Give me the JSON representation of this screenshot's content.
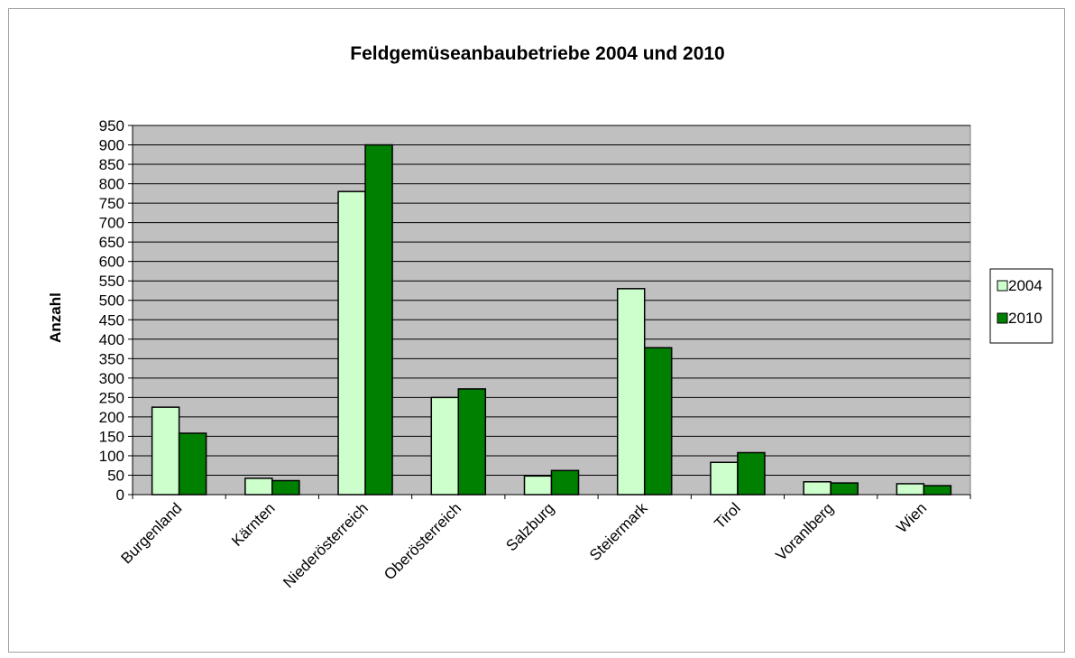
{
  "chart_data": {
    "type": "bar",
    "title": "Feldgemüseanbaubetriebe 2004 und 2010",
    "xlabel": "",
    "ylabel": "Anzahl",
    "ylim": [
      0,
      950
    ],
    "yticks": [
      0,
      50,
      100,
      150,
      200,
      250,
      300,
      350,
      400,
      450,
      500,
      550,
      600,
      650,
      700,
      750,
      800,
      850,
      900,
      950
    ],
    "grid": true,
    "legend_position": "right",
    "categories": [
      "Burgenland",
      "Kärnten",
      "Niederösterreich",
      "Oberösterreich",
      "Salzburg",
      "Steiermark",
      "Tirol",
      "Voranlberg",
      "Wien"
    ],
    "series": [
      {
        "name": "2004",
        "color": "#ccffcc",
        "values": [
          225,
          42,
          780,
          250,
          48,
          530,
          83,
          33,
          28
        ]
      },
      {
        "name": "2010",
        "color": "#008000",
        "values": [
          158,
          36,
          900,
          272,
          62,
          378,
          108,
          30,
          23
        ]
      }
    ],
    "plot_background": "#c0c0c0"
  }
}
